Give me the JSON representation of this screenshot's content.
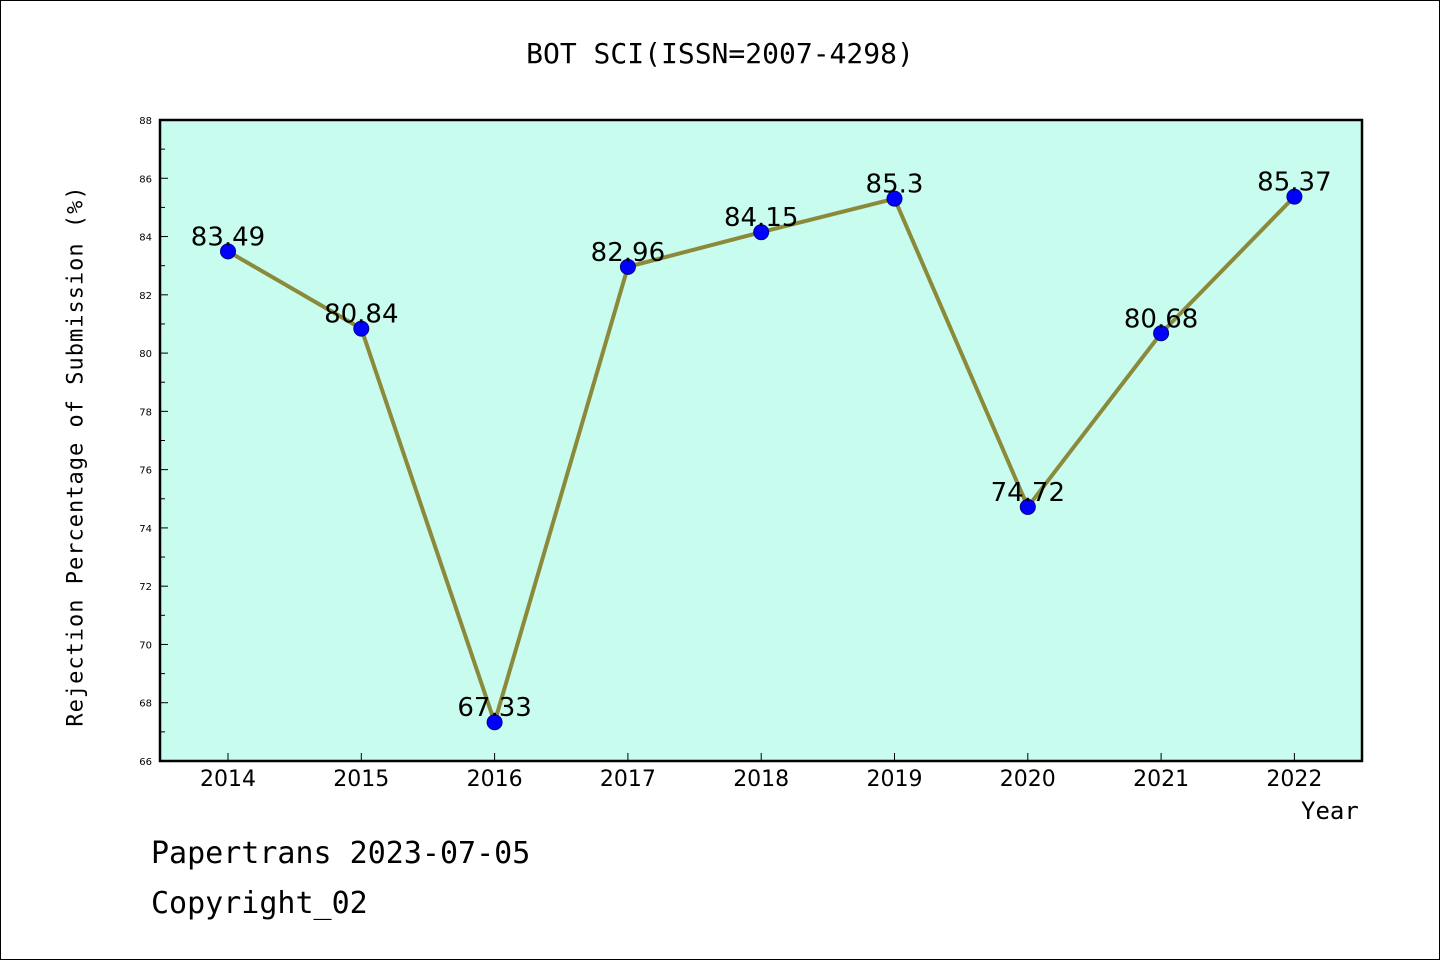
{
  "chart_data": {
    "type": "line",
    "title": "BOT SCI(ISSN=2007-4298)",
    "xlabel": "Year",
    "ylabel": "Rejection Percentage of Submission (%)",
    "categories": [
      "2014",
      "2015",
      "2016",
      "2017",
      "2018",
      "2019",
      "2020",
      "2021",
      "2022"
    ],
    "values": [
      83.49,
      80.84,
      67.33,
      82.96,
      84.15,
      85.3,
      74.72,
      80.68,
      85.37
    ],
    "data_labels": [
      "83.49",
      "80.84",
      "67.33",
      "82.96",
      "84.15",
      "85.3",
      "74.72",
      "80.68",
      "85.37"
    ],
    "ylim": [
      66,
      88
    ],
    "yticks": [
      "66",
      "68",
      "70",
      "72",
      "74",
      "76",
      "78",
      "80",
      "82",
      "84",
      "86",
      "88"
    ],
    "grid": false,
    "colors": {
      "plot_background": "#c8fcee",
      "line": "#8b8a3a",
      "marker": "#0000ff"
    }
  },
  "footer": {
    "line1": "Papertrans 2023-07-05",
    "line2": "Copyright_02"
  }
}
